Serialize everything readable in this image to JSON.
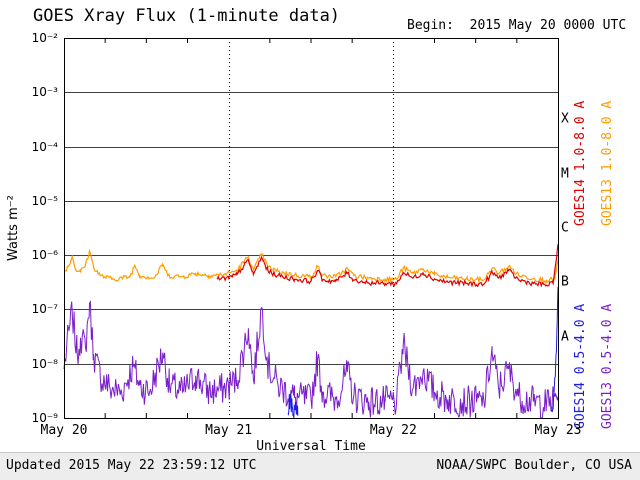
{
  "header": {
    "title": "GOES Xray Flux (1-minute data)",
    "begin_label": "Begin:  2015 May 20 0000 UTC"
  },
  "axes": {
    "x_label": "Universal Time",
    "y_label": "Watts m⁻²"
  },
  "legend": [
    {
      "id": "goes14-long",
      "label": "GOES14 1.0-8.0 A",
      "color": "#dd0000"
    },
    {
      "id": "goes13-long",
      "label": "GOES13 1.0-8.0 A",
      "color": "#ff9c00"
    },
    {
      "id": "goes14-short",
      "label": "GOES14 0.5-4.0 A",
      "color": "#1c1ce8"
    },
    {
      "id": "goes13-short",
      "label": "GOES13 0.5-4.0 A",
      "color": "#7a1fc8"
    }
  ],
  "footer": {
    "updated": "Updated 2015 May 22 23:59:12 UTC",
    "source": "NOAA/SWPC Boulder, CO USA"
  },
  "colors": {
    "background": "#ffffff",
    "axis": "#000000",
    "footer_bg": "#ededed"
  },
  "chart_data": {
    "type": "line",
    "title": "GOES Xray Flux (1-minute data)",
    "xlabel": "Universal Time",
    "ylabel": "Watts m^-2",
    "x_range_days": [
      0,
      3
    ],
    "x_tick_labels": [
      {
        "t": 0,
        "label": "May 20"
      },
      {
        "t": 1,
        "label": "May 21"
      },
      {
        "t": 2,
        "label": "May 22"
      },
      {
        "t": 3,
        "label": "May 23"
      }
    ],
    "y_log_range": [
      -9,
      -2
    ],
    "y_range_flux": [
      1e-09,
      0.01
    ],
    "y_tick_labels": [
      "10⁻²",
      "10⁻³",
      "10⁻⁴",
      "10⁻⁵",
      "10⁻⁶",
      "10⁻⁷",
      "10⁻⁸",
      "10⁻⁹"
    ],
    "flare_classes": [
      {
        "label": "X",
        "flux": 0.000316
      },
      {
        "label": "M",
        "flux": 3.16e-05
      },
      {
        "label": "C",
        "flux": 3.16e-06
      },
      {
        "label": "B",
        "flux": 3.16e-07
      },
      {
        "label": "A",
        "flux": 3.16e-08
      }
    ],
    "grid": {
      "horizontal_decades": true,
      "vertical_day_lines_dotted": true,
      "minor_tick_hours": 6
    },
    "legend_position": "right-rotated",
    "series": [
      {
        "id": "goes13-short",
        "name": "GOES13 0.5-4.0 A",
        "color": "#7a1fc8",
        "stroke_width": 1,
        "noise_log": 0.3,
        "step_minutes": 8,
        "segments": [
          [
            [
              0.0,
              8e-09
            ],
            [
              0.03,
              4e-08
            ],
            [
              0.05,
              9e-08
            ],
            [
              0.08,
              1.5e-08
            ],
            [
              0.1,
              3e-08
            ],
            [
              0.13,
              2e-08
            ],
            [
              0.155,
              1.3e-07
            ],
            [
              0.18,
              1.5e-08
            ],
            [
              0.22,
              6e-09
            ],
            [
              0.28,
              3.5e-09
            ],
            [
              0.35,
              3e-09
            ],
            [
              0.42,
              9e-09
            ],
            [
              0.46,
              4e-09
            ],
            [
              0.52,
              3e-09
            ],
            [
              0.6,
              1.6e-08
            ],
            [
              0.64,
              4e-09
            ],
            [
              0.72,
              3e-09
            ],
            [
              0.8,
              6e-09
            ],
            [
              0.88,
              3e-09
            ],
            [
              0.97,
              3.5e-09
            ],
            [
              1.05,
              5e-09
            ],
            [
              1.12,
              4.5e-08
            ],
            [
              1.15,
              5e-09
            ],
            [
              1.2,
              1.1e-07
            ],
            [
              1.24,
              9e-09
            ],
            [
              1.3,
              4e-09
            ],
            [
              1.4,
              2.4e-09
            ],
            [
              1.5,
              2.2e-09
            ],
            [
              1.54,
              1.2e-08
            ],
            [
              1.57,
              3e-09
            ],
            [
              1.65,
              2.2e-09
            ],
            [
              1.72,
              7e-09
            ],
            [
              1.76,
              2.5e-09
            ],
            [
              1.85,
              2e-09
            ],
            [
              1.95,
              2e-09
            ],
            [
              2.02,
              2e-09
            ],
            [
              2.06,
              2.2e-08
            ],
            [
              2.12,
              3.5e-09
            ],
            [
              2.18,
              7e-09
            ],
            [
              2.25,
              3e-09
            ],
            [
              2.33,
              2.2e-09
            ],
            [
              2.45,
              2e-09
            ],
            [
              2.55,
              2e-09
            ],
            [
              2.6,
              1.6e-08
            ],
            [
              2.64,
              3.5e-09
            ],
            [
              2.7,
              8e-09
            ],
            [
              2.76,
              2.5e-09
            ],
            [
              2.85,
              2e-09
            ],
            [
              2.93,
              1.8e-09
            ],
            [
              3.0,
              2.5e-09
            ]
          ]
        ]
      },
      {
        "id": "goes14-short",
        "name": "GOES14 0.5-4.0 A",
        "color": "#1c1ce8",
        "stroke_width": 1,
        "noise_log": 0.18,
        "step_minutes": 4,
        "segments": [
          [
            [
              1.36,
              1.2e-09
            ],
            [
              1.375,
              2.6e-09
            ],
            [
              1.39,
              1.1e-09
            ],
            [
              1.405,
              2e-09
            ],
            [
              1.42,
              1.1e-09
            ]
          ],
          [
            [
              2.96,
              1.4e-09
            ],
            [
              2.975,
              2.5e-09
            ],
            [
              2.985,
              8e-09
            ],
            [
              2.995,
              6e-08
            ],
            [
              3.0,
              2.6e-07
            ]
          ]
        ]
      },
      {
        "id": "goes13-long",
        "name": "GOES13 1.0-8.0 A",
        "color": "#ff9c00",
        "stroke_width": 1.2,
        "noise_log": 0.045,
        "step_minutes": 10,
        "segments": [
          [
            [
              0.0,
              5e-07
            ],
            [
              0.03,
              6.5e-07
            ],
            [
              0.05,
              9.5e-07
            ],
            [
              0.07,
              5.5e-07
            ],
            [
              0.1,
              5e-07
            ],
            [
              0.13,
              6.5e-07
            ],
            [
              0.155,
              1.2e-06
            ],
            [
              0.18,
              6e-07
            ],
            [
              0.22,
              4.2e-07
            ],
            [
              0.3,
              3.6e-07
            ],
            [
              0.4,
              4e-07
            ],
            [
              0.43,
              6.5e-07
            ],
            [
              0.46,
              4.2e-07
            ],
            [
              0.55,
              3.8e-07
            ],
            [
              0.6,
              6.8e-07
            ],
            [
              0.63,
              4.2e-07
            ],
            [
              0.72,
              4e-07
            ],
            [
              0.8,
              4.6e-07
            ],
            [
              0.88,
              4.2e-07
            ],
            [
              0.97,
              4.4e-07
            ],
            [
              1.05,
              5.2e-07
            ],
            [
              1.12,
              9.5e-07
            ],
            [
              1.15,
              5.2e-07
            ],
            [
              1.2,
              1.05e-06
            ],
            [
              1.24,
              6e-07
            ],
            [
              1.3,
              5e-07
            ],
            [
              1.4,
              4.3e-07
            ],
            [
              1.5,
              4e-07
            ],
            [
              1.54,
              6.2e-07
            ],
            [
              1.57,
              4.2e-07
            ],
            [
              1.65,
              4e-07
            ],
            [
              1.72,
              5.6e-07
            ],
            [
              1.76,
              4.2e-07
            ],
            [
              1.85,
              3.8e-07
            ],
            [
              1.95,
              3.6e-07
            ],
            [
              2.02,
              3.6e-07
            ],
            [
              2.06,
              5.8e-07
            ],
            [
              2.12,
              4.6e-07
            ],
            [
              2.18,
              5.6e-07
            ],
            [
              2.25,
              4.4e-07
            ],
            [
              2.33,
              3.9e-07
            ],
            [
              2.45,
              3.6e-07
            ],
            [
              2.55,
              3.5e-07
            ],
            [
              2.6,
              5.8e-07
            ],
            [
              2.64,
              4.6e-07
            ],
            [
              2.7,
              6.2e-07
            ],
            [
              2.76,
              4.3e-07
            ],
            [
              2.85,
              3.7e-07
            ],
            [
              2.93,
              3.4e-07
            ],
            [
              2.98,
              3.6e-07
            ],
            [
              3.0,
              8e-07
            ]
          ]
        ]
      },
      {
        "id": "goes14-long",
        "name": "GOES14 1.0-8.0 A",
        "color": "#dd0000",
        "stroke_width": 1.2,
        "noise_log": 0.045,
        "step_minutes": 10,
        "segments": [
          [
            [
              0.93,
              3.6e-07
            ],
            [
              1.0,
              3.8e-07
            ],
            [
              1.05,
              4.4e-07
            ],
            [
              1.12,
              8e-07
            ],
            [
              1.15,
              4.4e-07
            ],
            [
              1.2,
              9e-07
            ],
            [
              1.24,
              5e-07
            ],
            [
              1.3,
              4.2e-07
            ],
            [
              1.4,
              3.6e-07
            ],
            [
              1.5,
              3.3e-07
            ],
            [
              1.54,
              5.2e-07
            ],
            [
              1.57,
              3.5e-07
            ],
            [
              1.65,
              3.3e-07
            ],
            [
              1.72,
              4.7e-07
            ],
            [
              1.76,
              3.5e-07
            ],
            [
              1.85,
              3.1e-07
            ],
            [
              1.95,
              3e-07
            ],
            [
              2.02,
              3e-07
            ],
            [
              2.06,
              4.8e-07
            ],
            [
              2.12,
              3.8e-07
            ],
            [
              2.18,
              4.7e-07
            ],
            [
              2.25,
              3.6e-07
            ],
            [
              2.33,
              3.2e-07
            ],
            [
              2.45,
              3e-07
            ],
            [
              2.55,
              2.9e-07
            ],
            [
              2.6,
              4.8e-07
            ],
            [
              2.64,
              3.8e-07
            ],
            [
              2.7,
              5.2e-07
            ],
            [
              2.76,
              3.5e-07
            ],
            [
              2.85,
              3e-07
            ],
            [
              2.93,
              2.8e-07
            ],
            [
              2.97,
              3e-07
            ],
            [
              3.0,
              1.6e-06
            ]
          ]
        ]
      }
    ]
  }
}
